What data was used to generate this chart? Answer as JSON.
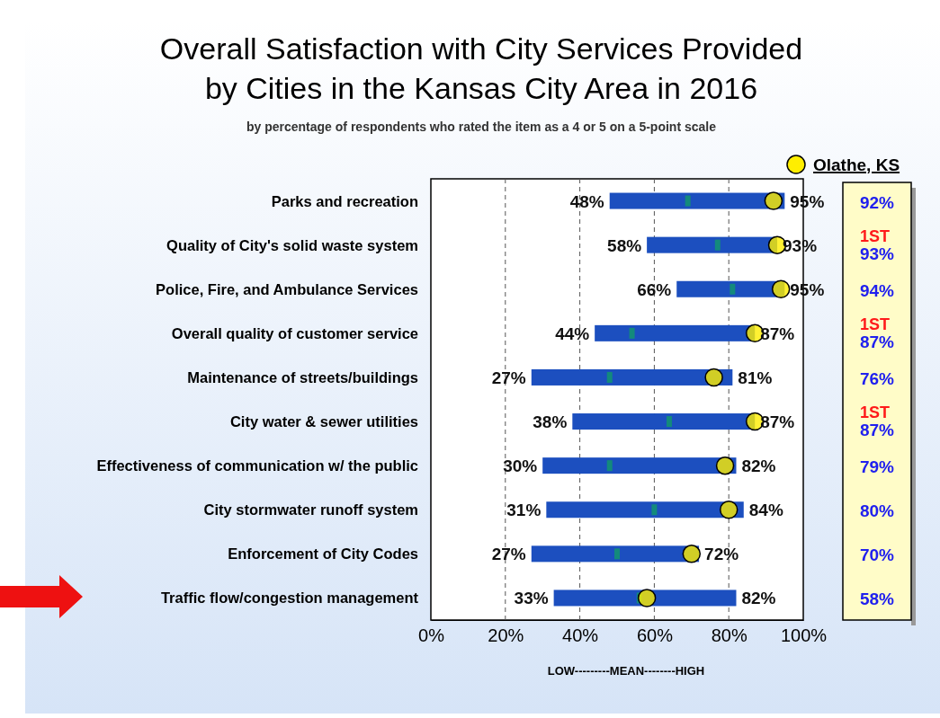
{
  "chart_data": {
    "type": "bar",
    "orientation": "horizontal",
    "title": "Overall Satisfaction with City Services Provided\nby Cities in the Kansas City Area in 2016",
    "subtitle": "by percentage of respondents who rated the item as a 4 or 5 on a 5-point scale",
    "xlabel": "LOW---------MEAN--------HIGH",
    "categories": [
      "Parks and recreation",
      "Quality of City's solid waste system",
      "Police, Fire, and Ambulance Services",
      "Overall quality of customer service",
      "Maintenance of streets/buildings",
      "City water & sewer utilities",
      "Effectiveness of communication w/ the public",
      "City stormwater runoff system",
      "Enforcement of City Codes",
      "Traffic flow/congestion management"
    ],
    "series": [
      {
        "type": "bar",
        "color": "#1c4fbf",
        "base": [
          48,
          58,
          66,
          44,
          27,
          38,
          30,
          31,
          27,
          33
        ],
        "values": [
          47,
          35,
          29,
          43,
          54,
          49,
          52,
          53,
          45,
          49
        ]
      },
      {
        "type": "scatter",
        "color": "#138a7c",
        "values": [
          69,
          77,
          81,
          54,
          48,
          64,
          48,
          60,
          50,
          56
        ]
      },
      {
        "type": "scatter",
        "name": "Olathe, KS",
        "color": "#ffee00",
        "marker": "circle",
        "values": [
          92,
          93,
          94,
          87,
          76,
          87,
          79,
          80,
          70,
          58
        ],
        "value_labels": [
          "92%",
          "1ST 93%",
          "94%",
          "1ST 87%",
          "76%",
          "1ST 87%",
          "79%",
          "80%",
          "70%",
          "58%"
        ]
      }
    ],
    "xlim": [
      0,
      100
    ],
    "xticks": [
      {
        "value": 0,
        "label": "0%"
      },
      {
        "value": 20,
        "label": "20%"
      },
      {
        "value": 40,
        "label": "40%"
      },
      {
        "value": 60,
        "label": "60%"
      },
      {
        "value": 80,
        "label": "80%"
      },
      {
        "value": 100,
        "label": "100%"
      }
    ],
    "grid": "x",
    "legend": "top right",
    "annotations": [
      {
        "text": "48%",
        "x": 48,
        "y": "Parks and recreation"
      },
      {
        "text": "95%",
        "x": 95,
        "y": "Parks and recreation"
      },
      {
        "text": "58%",
        "x": 58,
        "y": "Quality of City's solid waste system"
      },
      {
        "text": "93%",
        "x": 93,
        "y": "Quality of City's solid waste system"
      },
      {
        "text": "66%",
        "x": 66,
        "y": "Police, Fire, and Ambulance Services"
      },
      {
        "text": "95%",
        "x": 95,
        "y": "Police, Fire, and Ambulance Services"
      },
      {
        "text": "44%",
        "x": 44,
        "y": "Overall quality of customer service"
      },
      {
        "text": "87%",
        "x": 87,
        "y": "Overall quality of customer service"
      },
      {
        "text": "27%",
        "x": 27,
        "y": "Maintenance of streets/buildings"
      },
      {
        "text": "81%",
        "x": 81,
        "y": "Maintenance of streets/buildings"
      },
      {
        "text": "38%",
        "x": 38,
        "y": "City water & sewer utilities"
      },
      {
        "text": "87%",
        "x": 87,
        "y": "City water & sewer utilities"
      },
      {
        "text": "30%",
        "x": 30,
        "y": "Effectiveness of communication w/ the public"
      },
      {
        "text": "82%",
        "x": 82,
        "y": "Effectiveness of communication w/ the public"
      },
      {
        "text": "31%",
        "x": 31,
        "y": "City stormwater runoff system"
      },
      {
        "text": "84%",
        "x": 84,
        "y": "City stormwater runoff system"
      },
      {
        "text": "27%",
        "x": 27,
        "y": "Enforcement of City Codes"
      },
      {
        "text": "72%",
        "x": 72,
        "y": "Enforcement of City Codes"
      },
      {
        "text": "33%",
        "x": 33,
        "y": "Traffic flow/congestion management"
      },
      {
        "text": "82%",
        "x": 82,
        "y": "Traffic flow/congestion management"
      }
    ]
  }
}
